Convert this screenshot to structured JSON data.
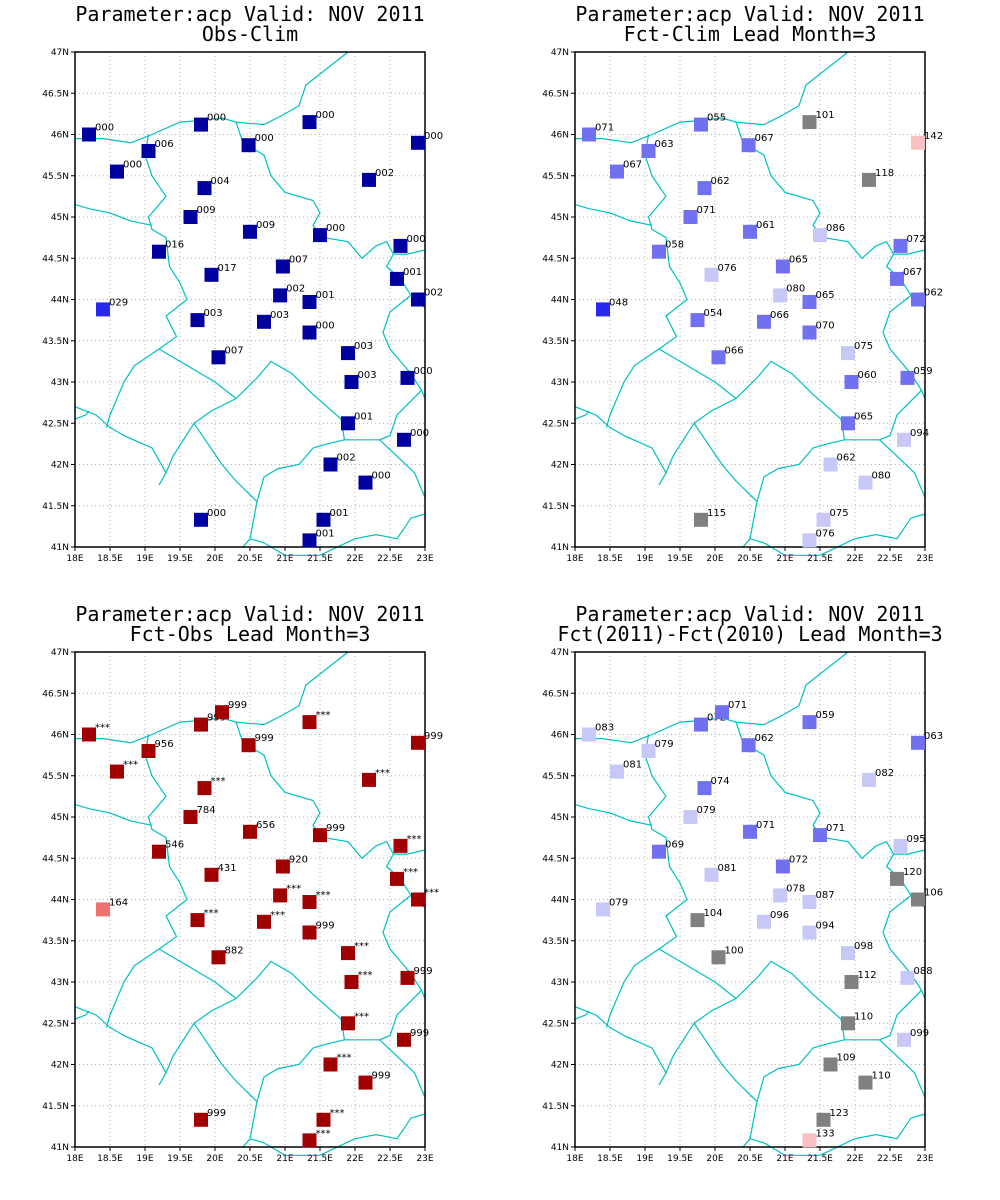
{
  "colors": {
    "border": "#00c0c0",
    "grid": "#b0b0b0",
    "very_low": "#0000a0",
    "low": "#2828f0",
    "mid_low": "#7070f0",
    "light": "#c8c8f8",
    "normal": "#808080",
    "above": "#f8c0c0",
    "high": "#f07070",
    "very_high": "#a00000"
  },
  "axes": {
    "x_ticks": [
      "18E",
      "18.5E",
      "19E",
      "19.5E",
      "20E",
      "20.5E",
      "21E",
      "21.5E",
      "22E",
      "22.5E",
      "23E"
    ],
    "y_ticks": [
      "41N",
      "41.5N",
      "42N",
      "42.5N",
      "43N",
      "43.5N",
      "44N",
      "44.5N",
      "45N",
      "45.5N",
      "46N",
      "46.5N",
      "47N"
    ],
    "lon_range": [
      18,
      23
    ],
    "lat_range": [
      41,
      47
    ],
    "grid": true
  },
  "panels": [
    {
      "title1": "Parameter:acp Valid: NOV 2011",
      "title2": "Obs-Clim",
      "stations": [
        {
          "lon": 18.2,
          "lat": 46.0,
          "label": "000",
          "color": "very_low"
        },
        {
          "lon": 19.05,
          "lat": 45.8,
          "label": "006",
          "color": "very_low"
        },
        {
          "lon": 18.6,
          "lat": 45.55,
          "label": "000",
          "color": "very_low"
        },
        {
          "lon": 19.8,
          "lat": 46.12,
          "label": "000",
          "color": "very_low"
        },
        {
          "lon": 20.48,
          "lat": 45.87,
          "label": "000",
          "color": "very_low"
        },
        {
          "lon": 21.35,
          "lat": 46.15,
          "label": "000",
          "color": "very_low"
        },
        {
          "lon": 22.9,
          "lat": 45.9,
          "label": "000",
          "color": "very_low"
        },
        {
          "lon": 19.85,
          "lat": 45.35,
          "label": "004",
          "color": "very_low"
        },
        {
          "lon": 22.2,
          "lat": 45.45,
          "label": "002",
          "color": "very_low"
        },
        {
          "lon": 19.65,
          "lat": 45.0,
          "label": "009",
          "color": "very_low"
        },
        {
          "lon": 20.5,
          "lat": 44.82,
          "label": "009",
          "color": "very_low"
        },
        {
          "lon": 21.5,
          "lat": 44.78,
          "label": "000",
          "color": "very_low"
        },
        {
          "lon": 22.65,
          "lat": 44.65,
          "label": "000",
          "color": "very_low"
        },
        {
          "lon": 19.2,
          "lat": 44.58,
          "label": "016",
          "color": "very_low"
        },
        {
          "lon": 19.95,
          "lat": 44.3,
          "label": "017",
          "color": "very_low"
        },
        {
          "lon": 20.97,
          "lat": 44.4,
          "label": "007",
          "color": "very_low"
        },
        {
          "lon": 22.6,
          "lat": 44.25,
          "label": "001",
          "color": "very_low"
        },
        {
          "lon": 20.93,
          "lat": 44.05,
          "label": "002",
          "color": "very_low"
        },
        {
          "lon": 21.35,
          "lat": 43.97,
          "label": "001",
          "color": "very_low"
        },
        {
          "lon": 22.9,
          "lat": 44.0,
          "label": "002",
          "color": "very_low"
        },
        {
          "lon": 18.4,
          "lat": 43.88,
          "label": "029",
          "color": "low"
        },
        {
          "lon": 19.75,
          "lat": 43.75,
          "label": "003",
          "color": "very_low"
        },
        {
          "lon": 20.7,
          "lat": 43.73,
          "label": "003",
          "color": "very_low"
        },
        {
          "lon": 21.35,
          "lat": 43.6,
          "label": "000",
          "color": "very_low"
        },
        {
          "lon": 21.9,
          "lat": 43.35,
          "label": "003",
          "color": "very_low"
        },
        {
          "lon": 20.05,
          "lat": 43.3,
          "label": "007",
          "color": "very_low"
        },
        {
          "lon": 21.95,
          "lat": 43.0,
          "label": "003",
          "color": "very_low"
        },
        {
          "lon": 22.75,
          "lat": 43.05,
          "label": "000",
          "color": "very_low"
        },
        {
          "lon": 21.9,
          "lat": 42.5,
          "label": "001",
          "color": "very_low"
        },
        {
          "lon": 22.7,
          "lat": 42.3,
          "label": "000",
          "color": "very_low"
        },
        {
          "lon": 21.65,
          "lat": 42.0,
          "label": "002",
          "color": "very_low"
        },
        {
          "lon": 22.15,
          "lat": 41.78,
          "label": "000",
          "color": "very_low"
        },
        {
          "lon": 19.8,
          "lat": 41.33,
          "label": "000",
          "color": "very_low"
        },
        {
          "lon": 21.55,
          "lat": 41.33,
          "label": "001",
          "color": "very_low"
        },
        {
          "lon": 21.35,
          "lat": 41.08,
          "label": "001",
          "color": "very_low"
        }
      ]
    },
    {
      "title1": "Parameter:acp Valid: NOV 2011",
      "title2": "Fct-Clim Lead Month=3",
      "stations": [
        {
          "lon": 18.2,
          "lat": 46.0,
          "label": "071",
          "color": "mid_low"
        },
        {
          "lon": 19.05,
          "lat": 45.8,
          "label": "063",
          "color": "mid_low"
        },
        {
          "lon": 18.6,
          "lat": 45.55,
          "label": "067",
          "color": "mid_low"
        },
        {
          "lon": 19.8,
          "lat": 46.12,
          "label": "055",
          "color": "mid_low"
        },
        {
          "lon": 20.48,
          "lat": 45.87,
          "label": "067",
          "color": "mid_low"
        },
        {
          "lon": 21.35,
          "lat": 46.15,
          "label": "101",
          "color": "normal"
        },
        {
          "lon": 22.9,
          "lat": 45.9,
          "label": "142",
          "color": "above"
        },
        {
          "lon": 19.85,
          "lat": 45.35,
          "label": "062",
          "color": "mid_low"
        },
        {
          "lon": 22.2,
          "lat": 45.45,
          "label": "118",
          "color": "normal"
        },
        {
          "lon": 19.65,
          "lat": 45.0,
          "label": "071",
          "color": "mid_low"
        },
        {
          "lon": 20.5,
          "lat": 44.82,
          "label": "061",
          "color": "mid_low"
        },
        {
          "lon": 21.5,
          "lat": 44.78,
          "label": "086",
          "color": "light"
        },
        {
          "lon": 22.65,
          "lat": 44.65,
          "label": "072",
          "color": "mid_low"
        },
        {
          "lon": 19.2,
          "lat": 44.58,
          "label": "058",
          "color": "mid_low"
        },
        {
          "lon": 19.95,
          "lat": 44.3,
          "label": "076",
          "color": "light"
        },
        {
          "lon": 20.97,
          "lat": 44.4,
          "label": "065",
          "color": "mid_low"
        },
        {
          "lon": 22.6,
          "lat": 44.25,
          "label": "067",
          "color": "mid_low"
        },
        {
          "lon": 20.93,
          "lat": 44.05,
          "label": "080",
          "color": "light"
        },
        {
          "lon": 21.35,
          "lat": 43.97,
          "label": "065",
          "color": "mid_low"
        },
        {
          "lon": 22.9,
          "lat": 44.0,
          "label": "062",
          "color": "mid_low"
        },
        {
          "lon": 18.4,
          "lat": 43.88,
          "label": "048",
          "color": "low"
        },
        {
          "lon": 19.75,
          "lat": 43.75,
          "label": "054",
          "color": "mid_low"
        },
        {
          "lon": 20.7,
          "lat": 43.73,
          "label": "066",
          "color": "mid_low"
        },
        {
          "lon": 21.35,
          "lat": 43.6,
          "label": "070",
          "color": "mid_low"
        },
        {
          "lon": 21.9,
          "lat": 43.35,
          "label": "075",
          "color": "light"
        },
        {
          "lon": 20.05,
          "lat": 43.3,
          "label": "066",
          "color": "mid_low"
        },
        {
          "lon": 21.95,
          "lat": 43.0,
          "label": "060",
          "color": "mid_low"
        },
        {
          "lon": 22.75,
          "lat": 43.05,
          "label": "059",
          "color": "mid_low"
        },
        {
          "lon": 21.9,
          "lat": 42.5,
          "label": "065",
          "color": "mid_low"
        },
        {
          "lon": 22.7,
          "lat": 42.3,
          "label": "094",
          "color": "light"
        },
        {
          "lon": 21.65,
          "lat": 42.0,
          "label": "062",
          "color": "light"
        },
        {
          "lon": 22.15,
          "lat": 41.78,
          "label": "080",
          "color": "light"
        },
        {
          "lon": 19.8,
          "lat": 41.33,
          "label": "115",
          "color": "normal"
        },
        {
          "lon": 21.55,
          "lat": 41.33,
          "label": "075",
          "color": "light"
        },
        {
          "lon": 21.35,
          "lat": 41.08,
          "label": "076",
          "color": "light"
        }
      ]
    },
    {
      "title1": "Parameter:acp Valid: NOV 2011",
      "title2": "Fct-Obs Lead Month=3",
      "stations": [
        {
          "lon": 18.2,
          "lat": 46.0,
          "label": "***",
          "color": "very_high"
        },
        {
          "lon": 19.05,
          "lat": 45.8,
          "label": "956",
          "color": "very_high"
        },
        {
          "lon": 18.6,
          "lat": 45.55,
          "label": "***",
          "color": "very_high"
        },
        {
          "lon": 19.8,
          "lat": 46.12,
          "label": "999",
          "color": "very_high"
        },
        {
          "lon": 20.1,
          "lat": 46.27,
          "label": "999",
          "color": "very_high"
        },
        {
          "lon": 20.48,
          "lat": 45.87,
          "label": "999",
          "color": "very_high"
        },
        {
          "lon": 21.35,
          "lat": 46.15,
          "label": "***",
          "color": "very_high"
        },
        {
          "lon": 22.9,
          "lat": 45.9,
          "label": "999",
          "color": "very_high"
        },
        {
          "lon": 19.85,
          "lat": 45.35,
          "label": "***",
          "color": "very_high"
        },
        {
          "lon": 22.2,
          "lat": 45.45,
          "label": "***",
          "color": "very_high"
        },
        {
          "lon": 19.65,
          "lat": 45.0,
          "label": "784",
          "color": "very_high"
        },
        {
          "lon": 20.5,
          "lat": 44.82,
          "label": "656",
          "color": "very_high"
        },
        {
          "lon": 21.5,
          "lat": 44.78,
          "label": "999",
          "color": "very_high"
        },
        {
          "lon": 22.65,
          "lat": 44.65,
          "label": "***",
          "color": "very_high"
        },
        {
          "lon": 19.2,
          "lat": 44.58,
          "label": "546",
          "color": "very_high"
        },
        {
          "lon": 19.95,
          "lat": 44.3,
          "label": "431",
          "color": "very_high"
        },
        {
          "lon": 20.97,
          "lat": 44.4,
          "label": "920",
          "color": "very_high"
        },
        {
          "lon": 22.6,
          "lat": 44.25,
          "label": "***",
          "color": "very_high"
        },
        {
          "lon": 20.93,
          "lat": 44.05,
          "label": "***",
          "color": "very_high"
        },
        {
          "lon": 21.35,
          "lat": 43.97,
          "label": "***",
          "color": "very_high"
        },
        {
          "lon": 22.9,
          "lat": 44.0,
          "label": "***",
          "color": "very_high"
        },
        {
          "lon": 18.4,
          "lat": 43.88,
          "label": "164",
          "color": "high"
        },
        {
          "lon": 19.75,
          "lat": 43.75,
          "label": "***",
          "color": "very_high"
        },
        {
          "lon": 20.7,
          "lat": 43.73,
          "label": "***",
          "color": "very_high"
        },
        {
          "lon": 21.35,
          "lat": 43.6,
          "label": "999",
          "color": "very_high"
        },
        {
          "lon": 21.9,
          "lat": 43.35,
          "label": "***",
          "color": "very_high"
        },
        {
          "lon": 20.05,
          "lat": 43.3,
          "label": "882",
          "color": "very_high"
        },
        {
          "lon": 21.95,
          "lat": 43.0,
          "label": "***",
          "color": "very_high"
        },
        {
          "lon": 22.75,
          "lat": 43.05,
          "label": "999",
          "color": "very_high"
        },
        {
          "lon": 21.9,
          "lat": 42.5,
          "label": "***",
          "color": "very_high"
        },
        {
          "lon": 22.7,
          "lat": 42.3,
          "label": "999",
          "color": "very_high"
        },
        {
          "lon": 21.65,
          "lat": 42.0,
          "label": "***",
          "color": "very_high"
        },
        {
          "lon": 22.15,
          "lat": 41.78,
          "label": "999",
          "color": "very_high"
        },
        {
          "lon": 19.8,
          "lat": 41.33,
          "label": "999",
          "color": "very_high"
        },
        {
          "lon": 21.55,
          "lat": 41.33,
          "label": "***",
          "color": "very_high"
        },
        {
          "lon": 21.35,
          "lat": 41.08,
          "label": "***",
          "color": "very_high"
        }
      ]
    },
    {
      "title1": "Parameter:acp Valid: NOV 2011",
      "title2": "Fct(2011)-Fct(2010) Lead Month=3",
      "stations": [
        {
          "lon": 18.2,
          "lat": 46.0,
          "label": "083",
          "color": "light"
        },
        {
          "lon": 19.05,
          "lat": 45.8,
          "label": "079",
          "color": "light"
        },
        {
          "lon": 18.6,
          "lat": 45.55,
          "label": "081",
          "color": "light"
        },
        {
          "lon": 19.8,
          "lat": 46.12,
          "label": "072",
          "color": "mid_low"
        },
        {
          "lon": 20.1,
          "lat": 46.27,
          "label": "071",
          "color": "mid_low"
        },
        {
          "lon": 20.48,
          "lat": 45.87,
          "label": "062",
          "color": "mid_low"
        },
        {
          "lon": 21.35,
          "lat": 46.15,
          "label": "059",
          "color": "mid_low"
        },
        {
          "lon": 22.9,
          "lat": 45.9,
          "label": "063",
          "color": "mid_low"
        },
        {
          "lon": 19.85,
          "lat": 45.35,
          "label": "074",
          "color": "mid_low"
        },
        {
          "lon": 22.2,
          "lat": 45.45,
          "label": "082",
          "color": "light"
        },
        {
          "lon": 19.65,
          "lat": 45.0,
          "label": "079",
          "color": "light"
        },
        {
          "lon": 20.5,
          "lat": 44.82,
          "label": "071",
          "color": "mid_low"
        },
        {
          "lon": 21.5,
          "lat": 44.78,
          "label": "071",
          "color": "mid_low"
        },
        {
          "lon": 22.65,
          "lat": 44.65,
          "label": "095",
          "color": "light"
        },
        {
          "lon": 19.2,
          "lat": 44.58,
          "label": "069",
          "color": "mid_low"
        },
        {
          "lon": 19.95,
          "lat": 44.3,
          "label": "081",
          "color": "light"
        },
        {
          "lon": 20.97,
          "lat": 44.4,
          "label": "072",
          "color": "mid_low"
        },
        {
          "lon": 22.6,
          "lat": 44.25,
          "label": "120",
          "color": "normal"
        },
        {
          "lon": 20.93,
          "lat": 44.05,
          "label": "078",
          "color": "light"
        },
        {
          "lon": 21.35,
          "lat": 43.97,
          "label": "087",
          "color": "light"
        },
        {
          "lon": 22.9,
          "lat": 44.0,
          "label": "106",
          "color": "normal"
        },
        {
          "lon": 18.4,
          "lat": 43.88,
          "label": "079",
          "color": "light"
        },
        {
          "lon": 19.75,
          "lat": 43.75,
          "label": "104",
          "color": "normal"
        },
        {
          "lon": 20.7,
          "lat": 43.73,
          "label": "096",
          "color": "light"
        },
        {
          "lon": 21.35,
          "lat": 43.6,
          "label": "094",
          "color": "light"
        },
        {
          "lon": 21.9,
          "lat": 43.35,
          "label": "098",
          "color": "light"
        },
        {
          "lon": 20.05,
          "lat": 43.3,
          "label": "100",
          "color": "normal"
        },
        {
          "lon": 21.95,
          "lat": 43.0,
          "label": "112",
          "color": "normal"
        },
        {
          "lon": 22.75,
          "lat": 43.05,
          "label": "088",
          "color": "light"
        },
        {
          "lon": 21.9,
          "lat": 42.5,
          "label": "110",
          "color": "normal"
        },
        {
          "lon": 22.7,
          "lat": 42.3,
          "label": "099",
          "color": "light"
        },
        {
          "lon": 21.65,
          "lat": 42.0,
          "label": "109",
          "color": "normal"
        },
        {
          "lon": 22.15,
          "lat": 41.78,
          "label": "110",
          "color": "normal"
        },
        {
          "lon": 21.55,
          "lat": 41.33,
          "label": "123",
          "color": "normal"
        },
        {
          "lon": 21.35,
          "lat": 41.08,
          "label": "133",
          "color": "above"
        }
      ]
    }
  ]
}
